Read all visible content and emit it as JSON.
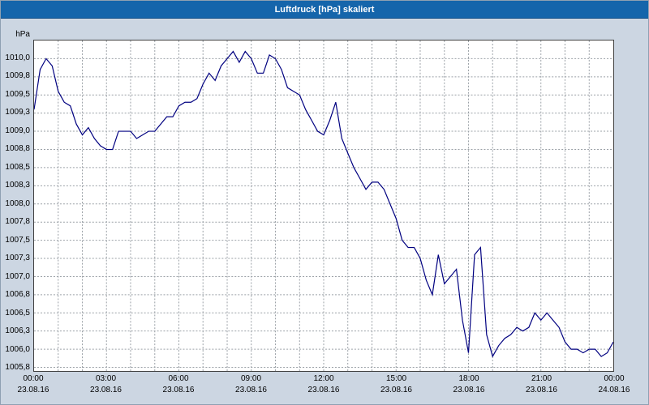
{
  "window": {
    "title": "Luftdruck [hPa] skaliert"
  },
  "colors": {
    "titlebar_bg": "#1565ab",
    "titlebar_text": "#ffffff",
    "frame_bg": "#ccd6e2",
    "plot_bg": "#ffffff",
    "grid": "#9aa0a6",
    "line": "#000080",
    "axis_text": "#000000"
  },
  "chart_data": {
    "type": "line",
    "title": "Luftdruck [hPa] skaliert",
    "xlabel": "",
    "ylabel": "hPa",
    "legend_position": "none",
    "grid": "dashed, hourly vertical and 0.25 hPa horizontal",
    "ylim": [
      1005.7,
      1010.25
    ],
    "y_tick_labels": [
      "1010,0",
      "1009,8",
      "1009,5",
      "1009,3",
      "1009,0",
      "1008,8",
      "1008,5",
      "1008,3",
      "1008,0",
      "1007,8",
      "1007,5",
      "1007,3",
      "1007,0",
      "1006,8",
      "1006,5",
      "1006,3",
      "1006,0",
      "1005,8"
    ],
    "y_tick_values": [
      1010.0,
      1009.75,
      1009.5,
      1009.25,
      1009.0,
      1008.75,
      1008.5,
      1008.25,
      1008.0,
      1007.75,
      1007.5,
      1007.25,
      1007.0,
      1006.75,
      1006.5,
      1006.25,
      1006.0,
      1005.75
    ],
    "x_total_minutes": 1440,
    "x_step_minutes": 15,
    "x_minor_grid_minutes": 60,
    "x_tick_interval_minutes": 180,
    "x_ticks": [
      {
        "time": "00:00",
        "date": "23.08.16"
      },
      {
        "time": "03:00",
        "date": "23.08.16"
      },
      {
        "time": "06:00",
        "date": "23.08.16"
      },
      {
        "time": "09:00",
        "date": "23.08.16"
      },
      {
        "time": "12:00",
        "date": "23.08.16"
      },
      {
        "time": "15:00",
        "date": "23.08.16"
      },
      {
        "time": "18:00",
        "date": "23.08.16"
      },
      {
        "time": "21:00",
        "date": "23.08.16"
      },
      {
        "time": "00:00",
        "date": "24.08.16"
      }
    ],
    "series": [
      {
        "name": "Luftdruck [hPa]",
        "color": "#000080",
        "values": [
          1009.3,
          1009.85,
          1010.0,
          1009.9,
          1009.55,
          1009.4,
          1009.35,
          1009.1,
          1008.95,
          1009.05,
          1008.9,
          1008.8,
          1008.75,
          1008.75,
          1009.0,
          1009.0,
          1009.0,
          1008.9,
          1008.95,
          1009.0,
          1009.0,
          1009.1,
          1009.2,
          1009.2,
          1009.35,
          1009.4,
          1009.4,
          1009.45,
          1009.65,
          1009.8,
          1009.7,
          1009.9,
          1010.0,
          1010.1,
          1009.95,
          1010.1,
          1010.0,
          1009.8,
          1009.8,
          1010.05,
          1010.0,
          1009.85,
          1009.6,
          1009.55,
          1009.5,
          1009.3,
          1009.15,
          1009.0,
          1008.95,
          1009.15,
          1009.4,
          1008.9,
          1008.7,
          1008.5,
          1008.35,
          1008.2,
          1008.3,
          1008.3,
          1008.2,
          1008.0,
          1007.8,
          1007.5,
          1007.4,
          1007.4,
          1007.25,
          1006.95,
          1006.75,
          1007.3,
          1006.9,
          1007.0,
          1007.1,
          1006.4,
          1005.95,
          1007.3,
          1007.4,
          1006.2,
          1005.9,
          1006.05,
          1006.15,
          1006.2,
          1006.3,
          1006.25,
          1006.3,
          1006.5,
          1006.4,
          1006.5,
          1006.4,
          1006.3,
          1006.1,
          1006.0,
          1006.0,
          1005.95,
          1006.0,
          1006.0,
          1005.9,
          1005.95,
          1006.1
        ]
      }
    ]
  }
}
